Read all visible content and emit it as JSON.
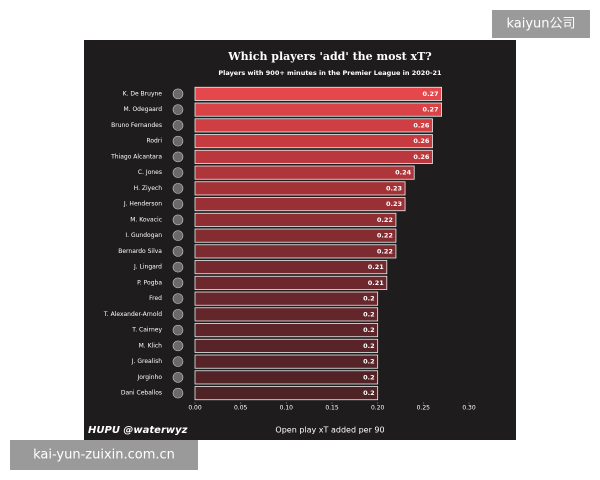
{
  "chart_data": {
    "type": "barh",
    "title": "Which players 'add' the most xT?",
    "subtitle": "Players with 900+ minutes in the Premier League in 2020-21",
    "xlabel": "Open play xT added per 90",
    "source": "HUPU @waterwyz",
    "categories": [
      "K. De Bruyne",
      "M. Odegaard",
      "Bruno Fernandes",
      "Rodri",
      "Thiago Alcantara",
      "C. Jones",
      "H. Ziyech",
      "J. Henderson",
      "M. Kovacic",
      "I. Gundogan",
      "Bernardo Silva",
      "J. Lingard",
      "P. Pogba",
      "Fred",
      "T. Alexander-Arnold",
      "T. Cairney",
      "M. Klich",
      "J. Grealish",
      "Jorginho",
      "Dani Ceballos"
    ],
    "values": [
      0.27,
      0.27,
      0.26,
      0.26,
      0.26,
      0.24,
      0.23,
      0.23,
      0.22,
      0.22,
      0.22,
      0.21,
      0.21,
      0.2,
      0.2,
      0.2,
      0.2,
      0.2,
      0.2,
      0.2
    ],
    "colors": [
      "#e4474c",
      "#d94247",
      "#cf3e43",
      "#c53b40",
      "#ba383d",
      "#ae353a",
      "#a33237",
      "#983035",
      "#8e2e33",
      "#852c31",
      "#7c2b30",
      "#74292e",
      "#6d282d",
      "#67272c",
      "#62262b",
      "#5d252a",
      "#592429",
      "#552328",
      "#522227",
      "#4f2226"
    ],
    "xlim": [
      0,
      0.3
    ],
    "xticks": [
      {
        "value": 0,
        "label": "0.00"
      },
      0.05,
      {
        "value": 0.1,
        "label": "0.10"
      },
      0.15,
      {
        "value": 0.2,
        "label": "0.20"
      },
      0.25,
      {
        "value": 0.3,
        "label": "0.30"
      }
    ]
  },
  "watermarks": [
    "kaiyun公司",
    "kai-yun-zuixin.com.cn"
  ]
}
